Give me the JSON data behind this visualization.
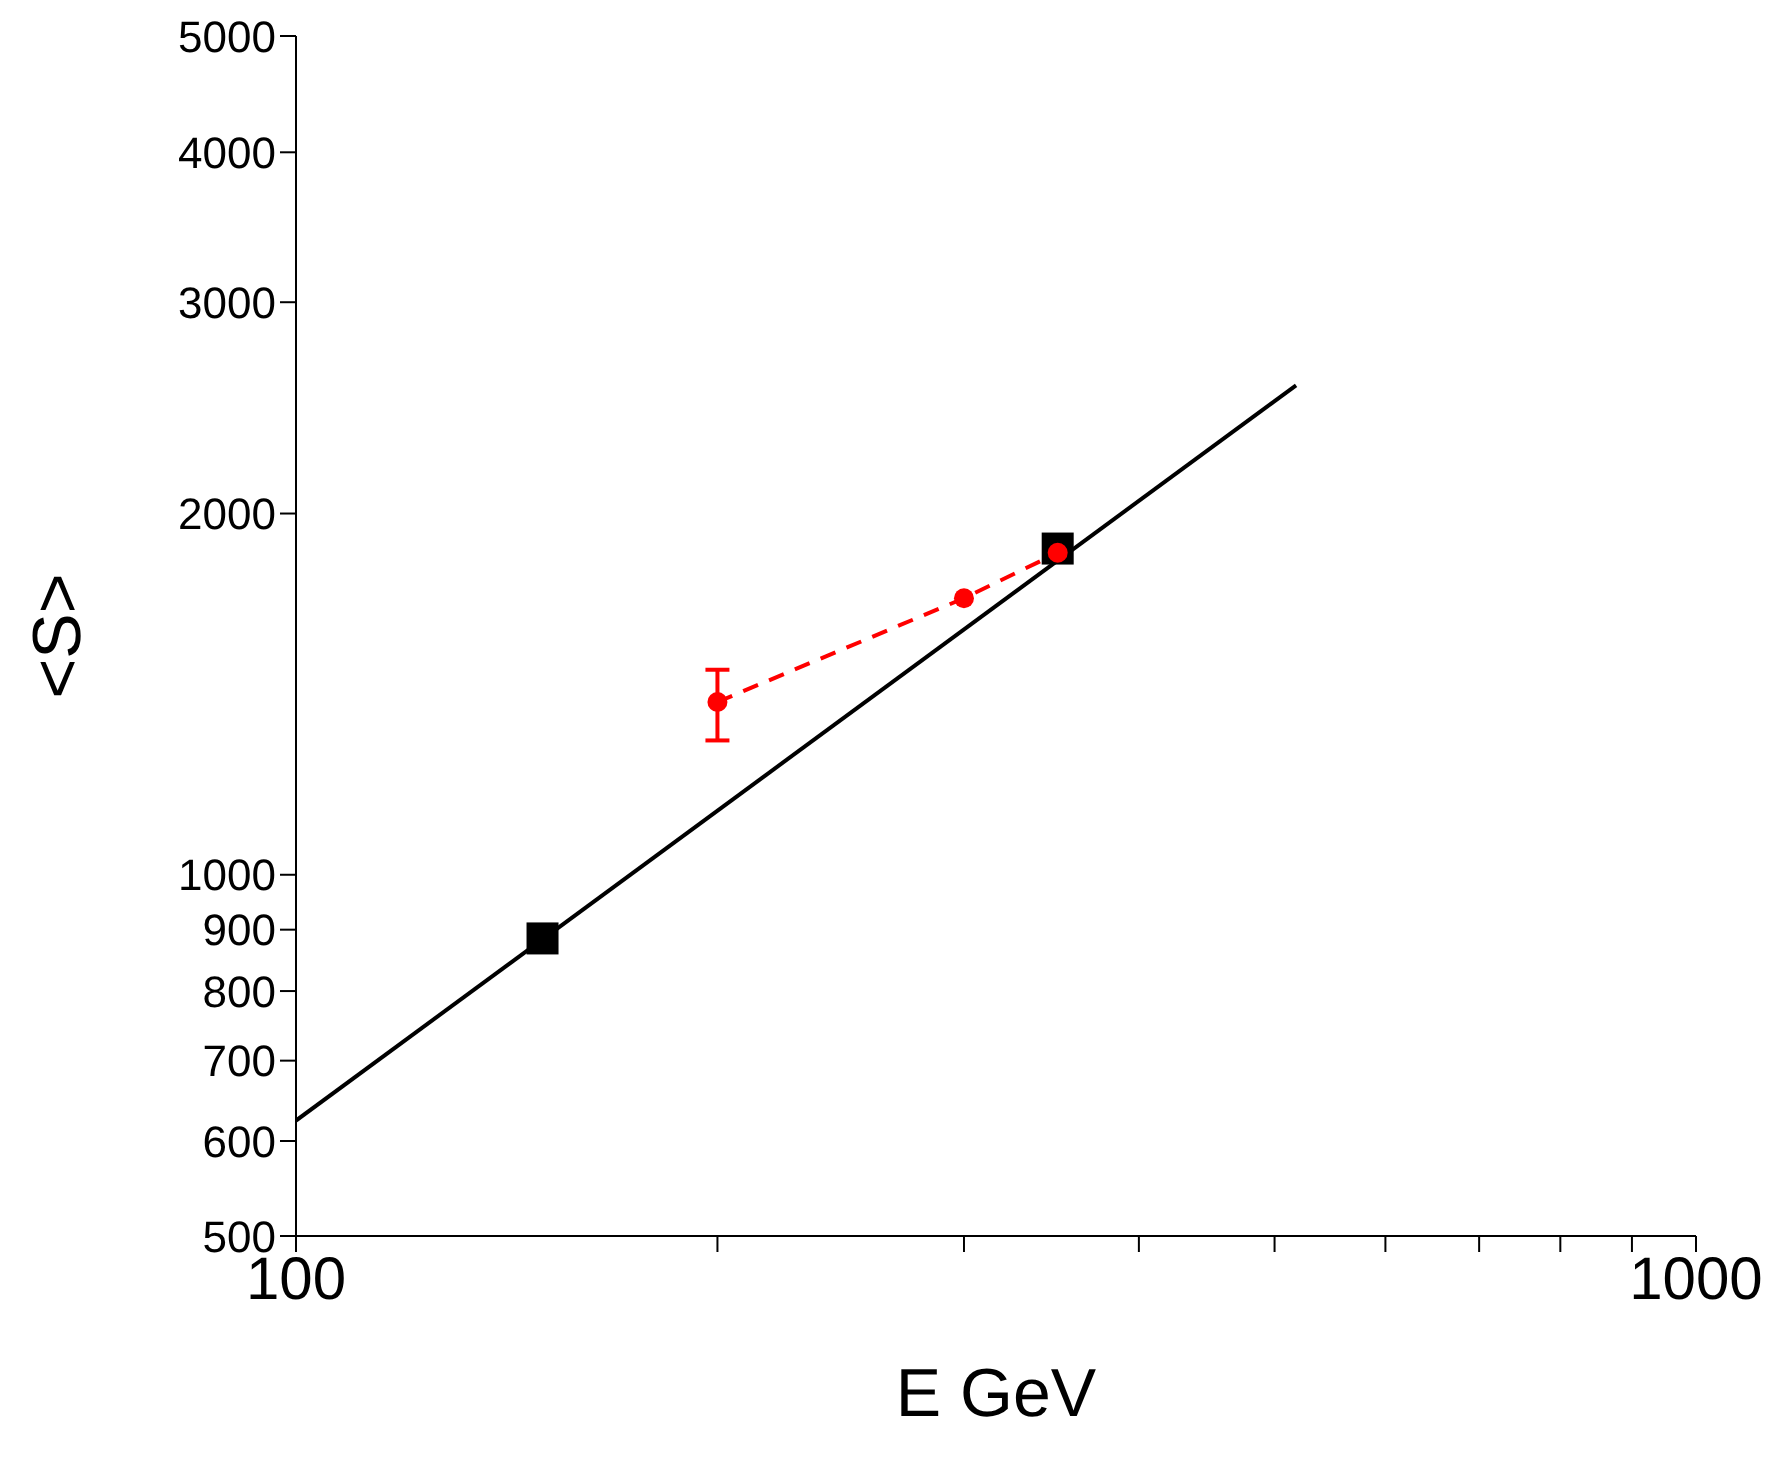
{
  "chart_data": {
    "type": "line",
    "xlabel": "E  GeV",
    "ylabel": "<S>",
    "log": "xy",
    "xlim": [
      100,
      1000
    ],
    "ylim": [
      500,
      5000
    ],
    "xticks": [
      100,
      {
        "value": 200,
        "label": null
      },
      {
        "value": 300,
        "label": null
      },
      {
        "value": 400,
        "label": null
      },
      {
        "value": 500,
        "label": null
      },
      {
        "value": 600,
        "label": null
      },
      {
        "value": 700,
        "label": null
      },
      {
        "value": 800,
        "label": null
      },
      {
        "value": 900,
        "label": null
      },
      1000
    ],
    "yticks": [
      500,
      600,
      700,
      800,
      900,
      1000,
      2000,
      3000,
      4000,
      5000
    ],
    "legend": false,
    "series": [
      {
        "x": [
          100,
          518
        ],
        "values": [
          624,
          2558
        ],
        "color": "#000000",
        "marker": "none",
        "line_style": "solid"
      },
      {
        "type": "scatter",
        "x": [
          150,
          350
        ],
        "values": [
          885,
          1870
        ],
        "color": "#000000",
        "marker": "square"
      },
      {
        "x": [
          200,
          300,
          350
        ],
        "values": [
          1393,
          1700,
          1855
        ],
        "color": "#ff0000",
        "marker": "circle",
        "line_style": "dashed",
        "errors": [
          [
            1294,
            1482
          ],
          null,
          null
        ]
      }
    ]
  }
}
